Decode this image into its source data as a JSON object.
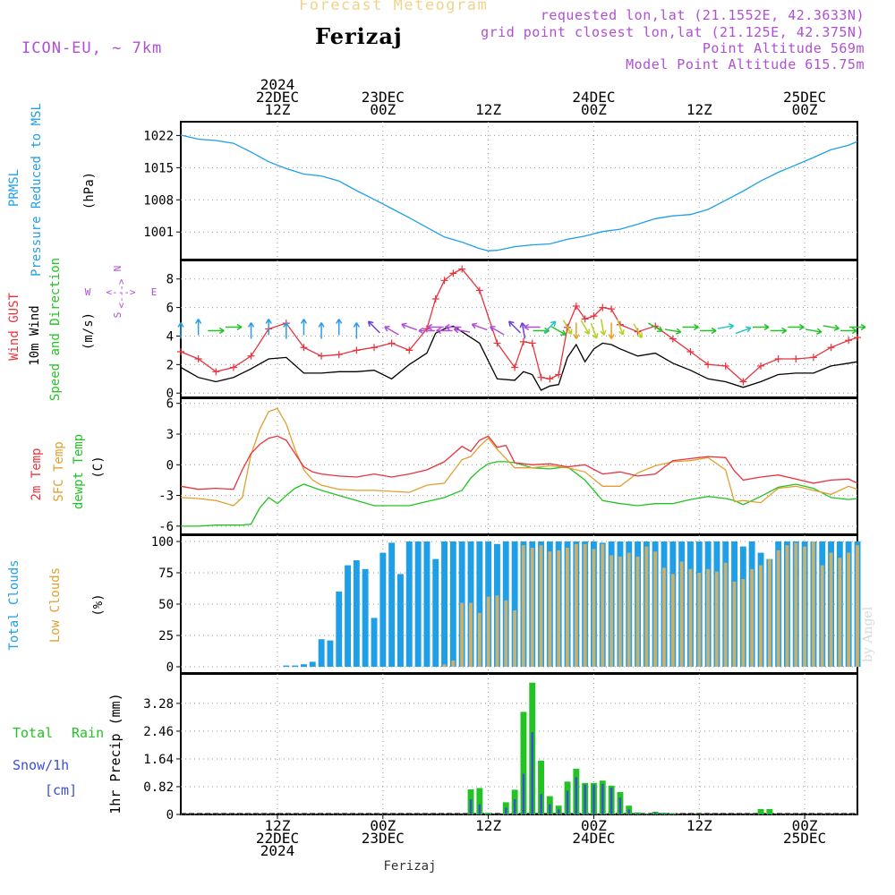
{
  "header": {
    "title": "Forecast Meteogram",
    "place": "Ferizaj",
    "model": "ICON-EU, ~ 7km",
    "requested": "requested lon,lat (21.1552E, 42.3633N)",
    "grid_point": "grid point closest lon,lat (21.125E, 42.375N)",
    "point_altitude": "Point Altitude 569m",
    "model_altitude": "Model Point Altitude 615.75m",
    "credit": "by Angel",
    "bottom_label": "Ferizaj"
  },
  "time_axis": {
    "start_hour": 0,
    "end_hour": 77,
    "top_ticks": [
      {
        "hour": 11,
        "lines": [
          "2024",
          "22DEC",
          "12Z"
        ]
      },
      {
        "hour": 23,
        "lines": [
          "23DEC",
          "00Z"
        ]
      },
      {
        "hour": 35,
        "lines": [
          "12Z"
        ]
      },
      {
        "hour": 47,
        "lines": [
          "24DEC",
          "00Z"
        ]
      },
      {
        "hour": 59,
        "lines": [
          "12Z"
        ]
      },
      {
        "hour": 71,
        "lines": [
          "25DEC",
          "00Z"
        ]
      }
    ],
    "bottom_ticks": [
      {
        "hour": 11,
        "lines": [
          "12Z",
          "22DEC",
          "2024"
        ]
      },
      {
        "hour": 23,
        "lines": [
          "00Z",
          "23DEC"
        ]
      },
      {
        "hour": 35,
        "lines": [
          "12Z"
        ]
      },
      {
        "hour": 47,
        "lines": [
          "00Z",
          "24DEC"
        ]
      },
      {
        "hour": 59,
        "lines": [
          "12Z"
        ]
      },
      {
        "hour": 71,
        "lines": [
          "00Z",
          "25DEC"
        ]
      }
    ]
  },
  "colors": {
    "pressure": "#1e9fe8",
    "gust": "#e8323c",
    "wind": "#000000",
    "label_green": "#22c322",
    "temp": "#e8323c",
    "sfc": "#e0a030",
    "dewpt": "#22c322",
    "total_clouds": "#1e9fe8",
    "low_clouds": "#c8b070",
    "rain": "#22c322",
    "snow": "#3a4fd8",
    "grid": "#999999",
    "wind_dir_label": "#b04fd4"
  },
  "chart_data": [
    {
      "type": "line",
      "id": "pressure",
      "labels": [
        "PRMSL",
        "Pressure Reduced to MSL",
        "(hPa)"
      ],
      "ylim": [
        995,
        1025
      ],
      "yticks": [
        1001,
        1008,
        1015,
        1022
      ],
      "x": [
        0,
        2,
        4,
        6,
        8,
        10,
        12,
        14,
        16,
        18,
        20,
        22,
        24,
        26,
        28,
        30,
        32,
        34,
        35,
        36,
        38,
        40,
        42,
        44,
        46,
        48,
        50,
        52,
        54,
        56,
        58,
        60,
        62,
        64,
        66,
        68,
        70,
        72,
        74,
        76,
        77
      ],
      "series": [
        {
          "name": "Pressure",
          "values": [
            1022.1,
            1021.2,
            1020.9,
            1020.3,
            1018.4,
            1016.3,
            1014.8,
            1013.6,
            1013.2,
            1012.1,
            1010.0,
            1008.1,
            1006.1,
            1004.1,
            1002.0,
            999.9,
            998.8,
            997.4,
            996.9,
            997.0,
            997.8,
            998.2,
            998.4,
            999.4,
            1000.1,
            1001.1,
            1001.6,
            1002.7,
            1003.9,
            1004.5,
            1004.8,
            1005.9,
            1007.9,
            1009.9,
            1012.1,
            1014.0,
            1015.6,
            1017.2,
            1018.9,
            1019.9,
            1020.7
          ]
        }
      ]
    },
    {
      "type": "line",
      "id": "wind",
      "labels": [
        "Wind GUST",
        "10m Wind",
        "Speed and Direction",
        "(m/s)"
      ],
      "compass": {
        "n": "N",
        "e": "E",
        "s": "S",
        "w": "W",
        "arrow": "<--->"
      },
      "ylim": [
        -0.3,
        9.3
      ],
      "yticks": [
        0,
        2,
        4,
        6,
        8
      ],
      "x": [
        0,
        2,
        4,
        6,
        8,
        10,
        12,
        14,
        16,
        18,
        20,
        22,
        24,
        26,
        28,
        29,
        30,
        31,
        32,
        34,
        36,
        38,
        39,
        40,
        41,
        42,
        43,
        44,
        45,
        46,
        47,
        48,
        49,
        50,
        52,
        54,
        56,
        58,
        60,
        62,
        64,
        66,
        68,
        70,
        72,
        74,
        76,
        77
      ],
      "series": [
        {
          "name": "Wind GUST",
          "values": [
            2.9,
            2.4,
            1.5,
            1.8,
            2.6,
            4.5,
            4.9,
            3.2,
            2.6,
            2.7,
            3.0,
            3.2,
            3.5,
            3.0,
            4.5,
            6.6,
            7.9,
            8.4,
            8.7,
            7.2,
            3.5,
            1.8,
            3.6,
            3.5,
            1.1,
            1.0,
            1.3,
            4.6,
            6.1,
            5.2,
            5.4,
            6.0,
            5.9,
            4.8,
            4.3,
            4.7,
            3.8,
            2.9,
            2.0,
            1.9,
            0.8,
            1.9,
            2.4,
            2.4,
            2.5,
            3.2,
            3.7,
            3.9
          ]
        },
        {
          "name": "10m Wind",
          "values": [
            1.8,
            1.1,
            0.8,
            1.1,
            1.7,
            2.4,
            2.5,
            1.4,
            1.4,
            1.5,
            1.5,
            1.6,
            1.0,
            2.0,
            2.8,
            4.2,
            4.5,
            4.7,
            4.3,
            3.5,
            1.0,
            0.9,
            1.5,
            1.3,
            0.2,
            0.5,
            0.6,
            2.5,
            3.4,
            2.2,
            3.1,
            3.5,
            3.4,
            3.1,
            2.6,
            2.8,
            2.1,
            1.6,
            1.0,
            0.8,
            0.4,
            0.8,
            1.3,
            1.4,
            1.4,
            1.9,
            2.1,
            2.2
          ]
        }
      ],
      "arrows": {
        "level": 4.5,
        "dir_deg": [
          0,
          0,
          90,
          90,
          0,
          0,
          0,
          0,
          0,
          0,
          0,
          315,
          300,
          290,
          270,
          270,
          270,
          270,
          280,
          290,
          300,
          315,
          350,
          270,
          90,
          45,
          120,
          150,
          180,
          150,
          160,
          170,
          180,
          160,
          150,
          120,
          100,
          90,
          90,
          80,
          70,
          90,
          90,
          90,
          100,
          100,
          90,
          90
        ]
      }
    },
    {
      "type": "line",
      "id": "temp",
      "labels": [
        "2m Temp",
        "SFC Temp",
        "dewpt Temp",
        "(C)"
      ],
      "ylim": [
        -6.8,
        6.5
      ],
      "yticks": [
        -6,
        -3,
        0,
        3,
        6
      ],
      "x": [
        0,
        2,
        4,
        6,
        7,
        8,
        9,
        10,
        11,
        12,
        13,
        14,
        15,
        16,
        18,
        20,
        22,
        24,
        26,
        28,
        30,
        32,
        33,
        34,
        35,
        36,
        37,
        38,
        40,
        42,
        44,
        46,
        48,
        50,
        52,
        54,
        56,
        58,
        60,
        62,
        63,
        64,
        66,
        68,
        70,
        72,
        74,
        76,
        77
      ],
      "series": [
        {
          "name": "2m Temp",
          "values": [
            -2.1,
            -2.4,
            -2.3,
            -2.4,
            -0.5,
            1.1,
            2.0,
            2.6,
            2.8,
            2.4,
            1.1,
            -0.2,
            -0.7,
            -0.9,
            -1.1,
            -1.2,
            -0.9,
            -1.2,
            -0.9,
            -0.5,
            0.3,
            1.8,
            1.3,
            2.4,
            2.8,
            1.7,
            1.9,
            0.2,
            0.0,
            0.1,
            -0.2,
            0.0,
            -0.9,
            -0.7,
            -1.1,
            -0.9,
            0.4,
            0.6,
            0.8,
            0.7,
            -0.6,
            -1.5,
            -1.2,
            -1.0,
            -1.4,
            -1.8,
            -1.5,
            -1.4,
            -1.8
          ]
        },
        {
          "name": "SFC Temp",
          "values": [
            -3.2,
            -3.3,
            -3.5,
            -4.0,
            -3.2,
            1.0,
            3.5,
            5.2,
            5.5,
            4.0,
            1.5,
            -0.5,
            -1.5,
            -2.0,
            -2.4,
            -2.5,
            -2.5,
            -2.6,
            -2.7,
            -2.0,
            -1.8,
            0.5,
            0.8,
            1.8,
            2.6,
            1.5,
            0.6,
            -0.3,
            -0.3,
            -0.1,
            -0.3,
            -0.7,
            -2.1,
            -2.1,
            -0.8,
            -0.1,
            0.3,
            0.4,
            0.7,
            -0.5,
            -3.6,
            -3.5,
            -3.7,
            -2.3,
            -2.1,
            -2.5,
            -2.9,
            -2.1,
            -2.4
          ]
        },
        {
          "name": "dewpt Temp",
          "values": [
            -6.0,
            -6.0,
            -5.9,
            -5.9,
            -5.9,
            -5.8,
            -4.2,
            -3.2,
            -3.8,
            -3.0,
            -2.3,
            -1.9,
            -2.2,
            -2.5,
            -3.0,
            -3.5,
            -4.0,
            -4.0,
            -4.0,
            -3.6,
            -3.2,
            -2.5,
            -1.3,
            -0.5,
            0.1,
            0.3,
            0.3,
            0.2,
            -0.3,
            -0.4,
            -0.2,
            -1.5,
            -3.5,
            -3.8,
            -4.0,
            -3.8,
            -3.8,
            -3.4,
            -3.1,
            -3.3,
            -3.5,
            -3.9,
            -3.1,
            -2.2,
            -1.9,
            -2.3,
            -3.2,
            -3.4,
            -3.3
          ]
        }
      ]
    },
    {
      "type": "bar",
      "id": "clouds",
      "labels": [
        "Total Clouds",
        "Low Clouds",
        "(%)"
      ],
      "ylim": [
        -5,
        105
      ],
      "yticks": [
        0,
        25,
        50,
        75,
        100
      ],
      "x": [
        0,
        1,
        2,
        3,
        4,
        5,
        6,
        7,
        8,
        9,
        10,
        11,
        12,
        13,
        14,
        15,
        16,
        17,
        18,
        19,
        20,
        21,
        22,
        23,
        24,
        25,
        26,
        27,
        28,
        29,
        30,
        31,
        32,
        33,
        34,
        35,
        36,
        37,
        38,
        39,
        40,
        41,
        42,
        43,
        44,
        45,
        46,
        47,
        48,
        49,
        50,
        51,
        52,
        53,
        54,
        55,
        56,
        57,
        58,
        59,
        60,
        61,
        62,
        63,
        64,
        65,
        66,
        67,
        68,
        69,
        70,
        71,
        72,
        73,
        74,
        75,
        76,
        77
      ],
      "series": [
        {
          "name": "Total Clouds",
          "values": [
            0,
            0,
            0,
            0,
            0,
            0,
            0,
            0,
            0,
            0,
            0,
            0,
            1,
            1,
            2,
            4,
            22,
            21,
            60,
            81,
            85,
            78,
            39,
            91,
            99,
            74,
            100,
            100,
            100,
            86,
            100,
            100,
            100,
            100,
            100,
            100,
            98,
            100,
            100,
            100,
            100,
            100,
            100,
            100,
            100,
            100,
            100,
            100,
            99,
            100,
            100,
            100,
            100,
            100,
            100,
            100,
            100,
            100,
            100,
            100,
            100,
            100,
            100,
            100,
            96,
            100,
            91,
            86,
            100,
            100,
            100,
            100,
            100,
            100,
            100,
            100,
            100,
            100
          ]
        },
        {
          "name": "Low Clouds",
          "values": [
            0,
            0,
            0,
            0,
            0,
            0,
            0,
            0,
            0,
            0,
            0,
            0,
            0,
            0,
            0,
            0,
            0,
            0,
            0,
            0,
            0,
            0,
            0,
            0,
            0,
            0,
            0,
            0,
            0,
            0,
            2,
            5,
            51,
            51,
            43,
            56,
            57,
            53,
            45,
            97,
            95,
            97,
            92,
            93,
            95,
            98,
            98,
            94,
            98,
            89,
            88,
            91,
            88,
            96,
            92,
            79,
            74,
            84,
            78,
            75,
            78,
            76,
            83,
            68,
            70,
            78,
            81,
            86,
            93,
            97,
            99,
            96,
            100,
            81,
            91,
            87,
            91,
            97
          ]
        }
      ]
    },
    {
      "type": "bar",
      "id": "precip",
      "labels": [
        "Total",
        "Rain",
        "Snow/1h",
        "[cm]",
        "1hr Precip (mm)"
      ],
      "ylim": [
        0,
        4.15
      ],
      "yticks": [
        0,
        0.82,
        1.64,
        2.46,
        3.28
      ],
      "ytick_labels": [
        "0",
        "0.82",
        "1.64",
        "2.46",
        "3.28"
      ],
      "x": [
        33,
        34,
        35,
        36,
        37,
        38,
        39,
        40,
        41,
        42,
        43,
        44,
        45,
        46,
        47,
        48,
        49,
        50,
        51,
        52,
        53,
        54,
        55,
        56,
        57,
        58,
        59,
        60,
        66,
        67
      ],
      "series": [
        {
          "name": "Total Rain",
          "values": [
            0.74,
            0.78,
            0.05,
            0.0,
            0.36,
            0.73,
            3.03,
            3.89,
            1.59,
            0.54,
            0.26,
            0.97,
            1.35,
            0.93,
            0.93,
            1.0,
            0.85,
            0.66,
            0.26,
            0.06,
            0.02,
            0.08,
            0.05,
            0.04,
            0.0,
            0.0,
            0.01,
            0.0,
            0.16,
            0.16
          ]
        },
        {
          "name": "Snow/1h",
          "values": [
            0.45,
            0.3,
            0.02,
            0.0,
            0.2,
            0.45,
            1.2,
            2.43,
            0.6,
            0.3,
            0.15,
            0.7,
            1.1,
            0.88,
            0.88,
            0.9,
            0.79,
            0.5,
            0.15,
            0.04,
            0.01,
            0.06,
            0.04,
            0.03,
            0.0,
            0.0,
            0.0,
            0.0,
            0.02,
            0.02
          ]
        }
      ]
    }
  ]
}
